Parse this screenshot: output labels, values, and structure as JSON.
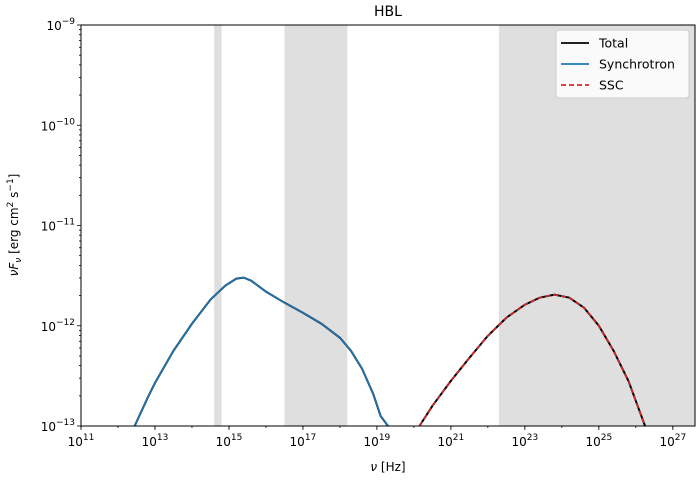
{
  "chart_data": {
    "type": "line",
    "title": "HBL",
    "xlabel": {
      "base": "ν",
      "unit": "[Hz]"
    },
    "ylabel": {
      "base": "νF",
      "sub": "ν",
      "unit_open": "[erg cm",
      "sup1": "2",
      "mid": " s",
      "sup2": "−1",
      "unit_close": "]"
    },
    "x_scale": "log",
    "y_scale": "log",
    "xlim_log10": [
      11,
      27.6
    ],
    "ylim_log10": [
      -13,
      -9
    ],
    "x_ticks": [
      {
        "base": "10",
        "exp": "11",
        "v": 11
      },
      {
        "base": "10",
        "exp": "13",
        "v": 13
      },
      {
        "base": "10",
        "exp": "15",
        "v": 15
      },
      {
        "base": "10",
        "exp": "17",
        "v": 17
      },
      {
        "base": "10",
        "exp": "19",
        "v": 19
      },
      {
        "base": "10",
        "exp": "21",
        "v": 21
      },
      {
        "base": "10",
        "exp": "23",
        "v": 23
      },
      {
        "base": "10",
        "exp": "25",
        "v": 25
      },
      {
        "base": "10",
        "exp": "27",
        "v": 27
      }
    ],
    "y_ticks": [
      {
        "base": "10",
        "exp": "−13",
        "v": -13
      },
      {
        "base": "10",
        "exp": "−12",
        "v": -12
      },
      {
        "base": "10",
        "exp": "−11",
        "v": -11
      },
      {
        "base": "10",
        "exp": "−10",
        "v": -10
      },
      {
        "base": "10",
        "exp": "−9",
        "v": -9
      }
    ],
    "shaded_bands_log10": [
      [
        14.6,
        14.8
      ],
      [
        16.5,
        18.2
      ],
      [
        22.3,
        24.6
      ],
      [
        24.6,
        25.8
      ],
      [
        25.8,
        27.6
      ]
    ],
    "legend": {
      "placement": "top-right",
      "entries": [
        {
          "name": "Total",
          "color": "#000000",
          "dash": "solid"
        },
        {
          "name": "Synchrotron",
          "color": "#1f77b4",
          "dash": "solid"
        },
        {
          "name": "SSC",
          "color": "#d62728",
          "dash": "dashed"
        }
      ]
    },
    "series": [
      {
        "name": "Synchrotron",
        "color": "#1f77b4",
        "log10_x": [
          12.45,
          12.8,
          13.0,
          13.5,
          14.0,
          14.5,
          14.9,
          15.2,
          15.4,
          15.6,
          16.0,
          16.5,
          17.0,
          17.5,
          18.0,
          18.3,
          18.6,
          18.9,
          19.1,
          19.3
        ],
        "log10_y": [
          -13.0,
          -12.72,
          -12.57,
          -12.25,
          -11.98,
          -11.74,
          -11.6,
          -11.53,
          -11.52,
          -11.55,
          -11.66,
          -11.77,
          -11.87,
          -11.98,
          -12.12,
          -12.25,
          -12.43,
          -12.68,
          -12.9,
          -13.0
        ]
      },
      {
        "name": "SSC",
        "color": "#d62728",
        "log10_x": [
          20.15,
          20.5,
          21.0,
          21.5,
          22.0,
          22.5,
          23.0,
          23.4,
          23.8,
          24.2,
          24.6,
          25.0,
          25.4,
          25.8,
          26.1,
          26.25
        ],
        "log10_y": [
          -13.0,
          -12.8,
          -12.55,
          -12.32,
          -12.1,
          -11.92,
          -11.79,
          -11.72,
          -11.69,
          -11.72,
          -11.82,
          -12.0,
          -12.25,
          -12.55,
          -12.85,
          -13.0
        ]
      }
    ]
  }
}
